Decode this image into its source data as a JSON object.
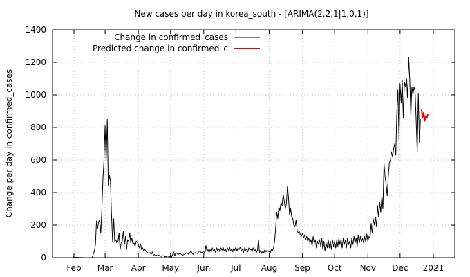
{
  "chart_data": {
    "type": "line",
    "title": "New cases per day in korea_south -  [ARIMA(2,2,1|1,0,1)]",
    "xlabel": "",
    "ylabel": "Change per day in confirmed_cases",
    "ylim": [
      0,
      1400
    ],
    "y_ticks": [
      0,
      200,
      400,
      600,
      800,
      1000,
      1200,
      1400
    ],
    "x_ticks": [
      {
        "label": "Feb",
        "x": 1
      },
      {
        "label": "Mar",
        "x": 30
      },
      {
        "label": "Apr",
        "x": 61
      },
      {
        "label": "May",
        "x": 91
      },
      {
        "label": "Jun",
        "x": 122
      },
      {
        "label": "Jul",
        "x": 152
      },
      {
        "label": "Aug",
        "x": 183
      },
      {
        "label": "Sep",
        "x": 214
      },
      {
        "label": "Oct",
        "x": 244
      },
      {
        "label": "Nov",
        "x": 275
      },
      {
        "label": "Dec",
        "x": 305
      },
      {
        "label": "2021",
        "x": 336
      }
    ],
    "xlim": [
      -19,
      356
    ],
    "grid": true,
    "legend": "top-left",
    "series": [
      {
        "name": "Change in confirmed_cases",
        "color": "#000000",
        "points": [
          [
            0,
            6
          ],
          [
            2,
            0
          ],
          [
            4,
            3
          ],
          [
            6,
            0
          ],
          [
            8,
            1
          ],
          [
            10,
            0
          ],
          [
            12,
            0
          ],
          [
            14,
            0
          ],
          [
            16,
            0
          ],
          [
            18,
            1
          ],
          [
            20,
            40
          ],
          [
            21,
            80
          ],
          [
            22,
            225
          ],
          [
            23,
            180
          ],
          [
            24,
            220
          ],
          [
            25,
            230
          ],
          [
            26,
            150
          ],
          [
            27,
            300
          ],
          [
            28,
            480
          ],
          [
            29,
            600
          ],
          [
            30,
            810
          ],
          [
            31,
            590
          ],
          [
            32,
            850
          ],
          [
            33,
            440
          ],
          [
            34,
            510
          ],
          [
            35,
            470
          ],
          [
            36,
            260
          ],
          [
            37,
            100
          ],
          [
            38,
            240
          ],
          [
            39,
            100
          ],
          [
            40,
            110
          ],
          [
            41,
            90
          ],
          [
            42,
            100
          ],
          [
            43,
            150
          ],
          [
            44,
            50
          ],
          [
            45,
            90
          ],
          [
            46,
            100
          ],
          [
            47,
            160
          ],
          [
            48,
            80
          ],
          [
            49,
            130
          ],
          [
            50,
            50
          ],
          [
            51,
            110
          ],
          [
            52,
            100
          ],
          [
            53,
            150
          ],
          [
            54,
            90
          ],
          [
            55,
            120
          ],
          [
            56,
            80
          ],
          [
            57,
            90
          ],
          [
            58,
            70
          ],
          [
            59,
            100
          ],
          [
            60,
            95
          ],
          [
            61,
            80
          ],
          [
            62,
            60
          ],
          [
            63,
            85
          ],
          [
            64,
            50
          ],
          [
            65,
            60
          ],
          [
            66,
            40
          ],
          [
            67,
            50
          ],
          [
            68,
            40
          ],
          [
            69,
            30
          ],
          [
            70,
            30
          ],
          [
            71,
            25
          ],
          [
            72,
            30
          ],
          [
            73,
            20
          ],
          [
            74,
            35
          ],
          [
            75,
            15
          ],
          [
            76,
            20
          ],
          [
            77,
            10
          ],
          [
            78,
            15
          ],
          [
            79,
            10
          ],
          [
            80,
            15
          ],
          [
            82,
            8
          ],
          [
            84,
            12
          ],
          [
            86,
            5
          ],
          [
            88,
            10
          ],
          [
            90,
            6
          ],
          [
            92,
            4
          ],
          [
            94,
            35
          ],
          [
            95,
            10
          ],
          [
            96,
            30
          ],
          [
            98,
            20
          ],
          [
            100,
            25
          ],
          [
            102,
            15
          ],
          [
            104,
            20
          ],
          [
            106,
            30
          ],
          [
            108,
            20
          ],
          [
            110,
            40
          ],
          [
            112,
            20
          ],
          [
            114,
            30
          ],
          [
            116,
            25
          ],
          [
            118,
            40
          ],
          [
            120,
            30
          ],
          [
            122,
            40
          ],
          [
            123,
            25
          ],
          [
            124,
            75
          ],
          [
            125,
            40
          ],
          [
            126,
            50
          ],
          [
            127,
            30
          ],
          [
            128,
            50
          ],
          [
            129,
            35
          ],
          [
            130,
            60
          ],
          [
            131,
            40
          ],
          [
            132,
            50
          ],
          [
            133,
            30
          ],
          [
            134,
            60
          ],
          [
            135,
            40
          ],
          [
            136,
            55
          ],
          [
            137,
            35
          ],
          [
            138,
            60
          ],
          [
            139,
            45
          ],
          [
            140,
            65
          ],
          [
            141,
            40
          ],
          [
            142,
            55
          ],
          [
            143,
            35
          ],
          [
            144,
            60
          ],
          [
            145,
            45
          ],
          [
            146,
            65
          ],
          [
            147,
            40
          ],
          [
            148,
            55
          ],
          [
            149,
            35
          ],
          [
            150,
            60
          ],
          [
            151,
            45
          ],
          [
            152,
            65
          ],
          [
            153,
            40
          ],
          [
            154,
            60
          ],
          [
            155,
            50
          ],
          [
            156,
            65
          ],
          [
            157,
            40
          ],
          [
            158,
            55
          ],
          [
            159,
            30
          ],
          [
            160,
            60
          ],
          [
            161,
            45
          ],
          [
            162,
            50
          ],
          [
            163,
            35
          ],
          [
            164,
            60
          ],
          [
            165,
            45
          ],
          [
            166,
            55
          ],
          [
            167,
            35
          ],
          [
            168,
            60
          ],
          [
            169,
            40
          ],
          [
            170,
            50
          ],
          [
            171,
            30
          ],
          [
            172,
            45
          ],
          [
            173,
            110
          ],
          [
            174,
            30
          ],
          [
            175,
            45
          ],
          [
            176,
            25
          ],
          [
            177,
            40
          ],
          [
            178,
            30
          ],
          [
            179,
            50
          ],
          [
            180,
            35
          ],
          [
            181,
            45
          ],
          [
            182,
            40
          ],
          [
            183,
            35
          ],
          [
            184,
            30
          ],
          [
            185,
            50
          ],
          [
            186,
            40
          ],
          [
            187,
            60
          ],
          [
            188,
            100
          ],
          [
            189,
            180
          ],
          [
            190,
            280
          ],
          [
            191,
            240
          ],
          [
            192,
            310
          ],
          [
            193,
            290
          ],
          [
            194,
            340
          ],
          [
            195,
            320
          ],
          [
            196,
            390
          ],
          [
            197,
            350
          ],
          [
            198,
            300
          ],
          [
            199,
            330
          ],
          [
            200,
            440
          ],
          [
            201,
            370
          ],
          [
            202,
            260
          ],
          [
            203,
            300
          ],
          [
            204,
            250
          ],
          [
            205,
            240
          ],
          [
            206,
            200
          ],
          [
            207,
            190
          ],
          [
            208,
            230
          ],
          [
            209,
            170
          ],
          [
            210,
            150
          ],
          [
            211,
            160
          ],
          [
            212,
            140
          ],
          [
            213,
            130
          ],
          [
            214,
            150
          ],
          [
            215,
            120
          ],
          [
            216,
            140
          ],
          [
            217,
            110
          ],
          [
            218,
            130
          ],
          [
            219,
            100
          ],
          [
            220,
            120
          ],
          [
            221,
            90
          ],
          [
            222,
            110
          ],
          [
            223,
            70
          ],
          [
            224,
            130
          ],
          [
            225,
            90
          ],
          [
            226,
            110
          ],
          [
            227,
            60
          ],
          [
            228,
            100
          ],
          [
            229,
            80
          ],
          [
            230,
            110
          ],
          [
            231,
            70
          ],
          [
            232,
            120
          ],
          [
            233,
            50
          ],
          [
            234,
            100
          ],
          [
            235,
            40
          ],
          [
            236,
            90
          ],
          [
            237,
            60
          ],
          [
            238,
            110
          ],
          [
            239,
            60
          ],
          [
            240,
            100
          ],
          [
            241,
            50
          ],
          [
            242,
            110
          ],
          [
            243,
            70
          ],
          [
            244,
            100
          ],
          [
            245,
            60
          ],
          [
            246,
            110
          ],
          [
            247,
            70
          ],
          [
            248,
            120
          ],
          [
            249,
            80
          ],
          [
            250,
            110
          ],
          [
            251,
            60
          ],
          [
            252,
            120
          ],
          [
            253,
            80
          ],
          [
            254,
            110
          ],
          [
            255,
            60
          ],
          [
            256,
            120
          ],
          [
            257,
            80
          ],
          [
            258,
            100
          ],
          [
            259,
            60
          ],
          [
            260,
            120
          ],
          [
            261,
            80
          ],
          [
            262,
            130
          ],
          [
            263,
            90
          ],
          [
            264,
            120
          ],
          [
            265,
            70
          ],
          [
            266,
            140
          ],
          [
            267,
            90
          ],
          [
            268,
            130
          ],
          [
            269,
            100
          ],
          [
            270,
            120
          ],
          [
            271,
            90
          ],
          [
            272,
            130
          ],
          [
            273,
            95
          ],
          [
            274,
            145
          ],
          [
            275,
            100
          ],
          [
            276,
            130
          ],
          [
            277,
            120
          ],
          [
            278,
            210
          ],
          [
            279,
            150
          ],
          [
            280,
            240
          ],
          [
            281,
            200
          ],
          [
            282,
            250
          ],
          [
            283,
            190
          ],
          [
            284,
            320
          ],
          [
            285,
            250
          ],
          [
            286,
            340
          ],
          [
            287,
            280
          ],
          [
            288,
            380
          ],
          [
            289,
            300
          ],
          [
            290,
            580
          ],
          [
            291,
            500
          ],
          [
            292,
            450
          ],
          [
            293,
            380
          ],
          [
            294,
            500
          ],
          [
            295,
            580
          ],
          [
            296,
            600
          ],
          [
            297,
            650
          ],
          [
            298,
            620
          ],
          [
            299,
            670
          ],
          [
            300,
            700
          ],
          [
            301,
            630
          ],
          [
            302,
            900
          ],
          [
            303,
            1030
          ],
          [
            304,
            720
          ],
          [
            305,
            1070
          ],
          [
            306,
            950
          ],
          [
            307,
            1090
          ],
          [
            308,
            860
          ],
          [
            309,
            1080
          ],
          [
            310,
            1050
          ],
          [
            311,
            1100
          ],
          [
            312,
            980
          ],
          [
            313,
            1230
          ],
          [
            314,
            1100
          ],
          [
            315,
            870
          ],
          [
            316,
            1050
          ],
          [
            317,
            1000
          ],
          [
            318,
            1050
          ],
          [
            319,
            1020
          ],
          [
            320,
            840
          ],
          [
            321,
            650
          ],
          [
            322,
            1010
          ],
          [
            323,
            710
          ],
          [
            324,
            850
          ]
        ]
      },
      {
        "name": "Predicted change in confirmed_c",
        "color": "#ee0000",
        "points": [
          [
            325,
            910
          ],
          [
            326,
            860
          ],
          [
            327,
            890
          ],
          [
            328,
            840
          ],
          [
            329,
            870
          ],
          [
            330,
            860
          ],
          [
            331,
            880
          ]
        ]
      }
    ]
  }
}
